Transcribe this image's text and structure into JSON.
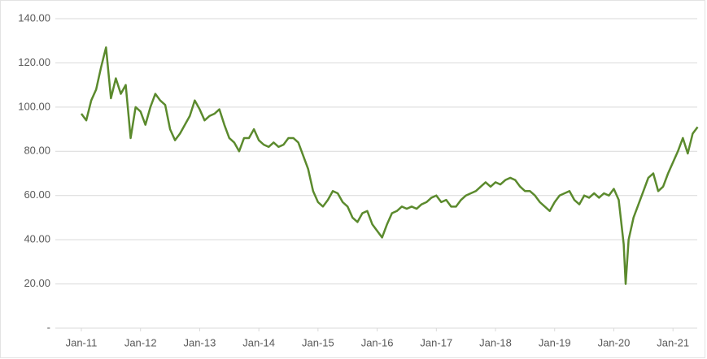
{
  "chart_data": {
    "type": "line",
    "x": [
      2011,
      2011.083,
      2011.167,
      2011.25,
      2011.333,
      2011.417,
      2011.5,
      2011.583,
      2011.667,
      2011.75,
      2011.833,
      2011.917,
      2012,
      2012.083,
      2012.167,
      2012.25,
      2012.333,
      2012.417,
      2012.5,
      2012.583,
      2012.667,
      2012.75,
      2012.833,
      2012.917,
      2013,
      2013.083,
      2013.167,
      2013.25,
      2013.333,
      2013.417,
      2013.5,
      2013.583,
      2013.667,
      2013.75,
      2013.833,
      2013.917,
      2014,
      2014.083,
      2014.167,
      2014.25,
      2014.333,
      2014.417,
      2014.5,
      2014.583,
      2014.667,
      2014.75,
      2014.833,
      2014.917,
      2015,
      2015.083,
      2015.167,
      2015.25,
      2015.333,
      2015.417,
      2015.5,
      2015.583,
      2015.667,
      2015.75,
      2015.833,
      2015.917,
      2016,
      2016.083,
      2016.167,
      2016.25,
      2016.333,
      2016.417,
      2016.5,
      2016.583,
      2016.667,
      2016.75,
      2016.833,
      2016.917,
      2017,
      2017.083,
      2017.167,
      2017.25,
      2017.333,
      2017.417,
      2017.5,
      2017.583,
      2017.667,
      2017.75,
      2017.833,
      2017.917,
      2018,
      2018.083,
      2018.167,
      2018.25,
      2018.333,
      2018.417,
      2018.5,
      2018.583,
      2018.667,
      2018.75,
      2018.833,
      2018.917,
      2019,
      2019.083,
      2019.167,
      2019.25,
      2019.333,
      2019.417,
      2019.5,
      2019.583,
      2019.667,
      2019.75,
      2019.833,
      2019.917,
      2020,
      2020.083,
      2020.167,
      2020.2,
      2020.25,
      2020.333,
      2020.417,
      2020.5,
      2020.583,
      2020.667,
      2020.75,
      2020.833,
      2020.917,
      2021,
      2021.083,
      2021.167,
      2021.25,
      2021.333,
      2021.417
    ],
    "series": [
      {
        "color": "#5b8a2d",
        "values": [
          97,
          94,
          103,
          108,
          118,
          127,
          104,
          113,
          106,
          110,
          86,
          100,
          98,
          92,
          100,
          106,
          103,
          101,
          90,
          85,
          88,
          92,
          96,
          103,
          99,
          94,
          96,
          97,
          99,
          92,
          86,
          84,
          80,
          86,
          86,
          90,
          85,
          83,
          82,
          84,
          82,
          83,
          86,
          86,
          84,
          78,
          72,
          62,
          57,
          55,
          58,
          62,
          61,
          57,
          55,
          50,
          48,
          52,
          53,
          47,
          44,
          41,
          47,
          52,
          53,
          55,
          54,
          55,
          54,
          56,
          57,
          59,
          60,
          57,
          58,
          55,
          55,
          58,
          60,
          61,
          62,
          64,
          66,
          64,
          66,
          65,
          67,
          68,
          67,
          64,
          62,
          62,
          60,
          57,
          55,
          53,
          57,
          60,
          61,
          62,
          58,
          56,
          60,
          59,
          61,
          59,
          61,
          60,
          63,
          58,
          38,
          20,
          40,
          50,
          56,
          62,
          68,
          70,
          62,
          64,
          70,
          75,
          80,
          86,
          79,
          88,
          91
        ]
      }
    ],
    "xlim": [
      2010.56,
      2021.41
    ],
    "xticks": [
      {
        "value": 2011,
        "label": "Jan-11"
      },
      {
        "value": 2012,
        "label": "Jan-12"
      },
      {
        "value": 2013,
        "label": "Jan-13"
      },
      {
        "value": 2014,
        "label": "Jan-14"
      },
      {
        "value": 2015,
        "label": "Jan-15"
      },
      {
        "value": 2016,
        "label": "Jan-16"
      },
      {
        "value": 2017,
        "label": "Jan-17"
      },
      {
        "value": 2018,
        "label": "Jan-18"
      },
      {
        "value": 2019,
        "label": "Jan-19"
      },
      {
        "value": 2020,
        "label": "Jan-20"
      },
      {
        "value": 2021,
        "label": "Jan-21"
      }
    ],
    "ylim": [
      0,
      140
    ],
    "yticks": [
      {
        "value": 0,
        "label": "-"
      },
      {
        "value": 20,
        "label": "20.00"
      },
      {
        "value": 40,
        "label": "40.00"
      },
      {
        "value": 60,
        "label": "60.00"
      },
      {
        "value": 80,
        "label": "80.00"
      },
      {
        "value": 100,
        "label": "100.00"
      },
      {
        "value": 120,
        "label": "120.00"
      },
      {
        "value": 140,
        "label": "140.00"
      }
    ],
    "grid": true
  }
}
